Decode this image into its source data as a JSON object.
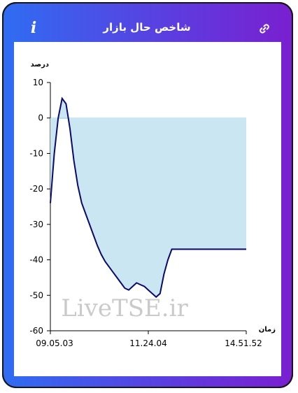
{
  "header": {
    "title": "شاخص حال بازار",
    "info_icon": "info-icon",
    "info_label": "i",
    "link_icon": "link-icon"
  },
  "watermark": "LiveTSE.ir",
  "colors": {
    "accent_start": "#2f6df2",
    "accent_end": "#7a1fd0",
    "line": "#0a0a6e",
    "fill": "#c9e6f2"
  },
  "chart_data": {
    "type": "area",
    "ylabel": "درصد",
    "xlabel": "زمان",
    "ylim": [
      -60,
      10
    ],
    "yticks": [
      10,
      0,
      -10,
      -20,
      -30,
      -40,
      -50,
      -60
    ],
    "xtick_labels": [
      "09.05.03",
      "11.24.04",
      "14.51.52"
    ],
    "x": [
      0,
      1,
      2,
      3,
      4,
      5,
      6,
      7,
      8,
      9,
      10,
      11,
      12,
      13,
      14,
      15,
      16,
      17,
      18,
      19,
      20,
      21,
      22,
      23,
      24,
      25,
      26,
      27,
      28,
      29,
      30,
      31,
      32,
      33,
      34,
      35,
      36,
      37,
      38,
      39,
      40,
      41,
      42,
      43,
      44,
      45,
      46,
      47,
      48,
      49,
      50
    ],
    "values": [
      -24,
      -10,
      0,
      5.5,
      4,
      -3,
      -12,
      -19,
      -24,
      -27,
      -30,
      -33,
      -36,
      -38.5,
      -40.5,
      -42,
      -43.5,
      -45,
      -46.5,
      -48,
      -48.5,
      -47.5,
      -46.5,
      -47,
      -47.5,
      -48.5,
      -49.5,
      -50.5,
      -49.5,
      -44,
      -40,
      -37,
      -37,
      -37,
      -37,
      -37,
      -37,
      -37,
      -37,
      -37,
      -37,
      -37,
      -37,
      -37,
      -37,
      -37,
      -37,
      -37,
      -37,
      -37,
      -37
    ]
  }
}
